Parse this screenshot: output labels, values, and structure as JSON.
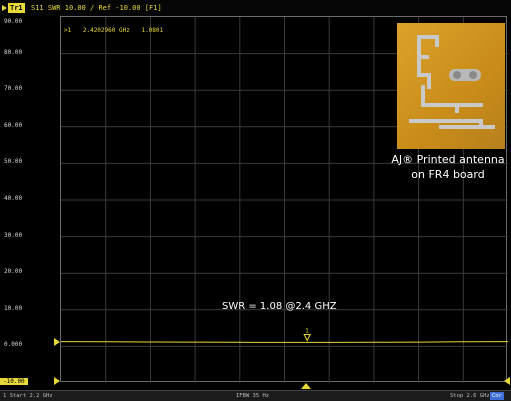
{
  "header": {
    "trace_id": "Tr1",
    "params": "S11",
    "format_scale": "SWR 10.00 / Ref -10.00",
    "channel": "[F1]"
  },
  "marker": {
    "id": ">1",
    "frequency": "2.4202960 GHz",
    "value": "1.0801"
  },
  "y_axis_labels": [
    "90.00",
    "80.00",
    "70.00",
    "60.00",
    "50.00",
    "40.00",
    "30.00",
    "20.00",
    "10.00",
    "0.000",
    "-10.00"
  ],
  "annotation": {
    "swr_text": "SWR = 1.08 @2.4 GHZ"
  },
  "photo": {
    "caption_line1": "AJ® Printed antenna",
    "caption_line2": "on FR4 board"
  },
  "status_bar": {
    "channel_no": "1",
    "start": "Start 2.2 GHz",
    "ifbw": "IFBW 35 Hz",
    "stop": "Stop 2.6 GHz",
    "badge": "Cor"
  },
  "colors": {
    "trace": "#e8d93a",
    "grid": "#3a3a3a",
    "background": "#000000"
  },
  "chart_data": {
    "type": "line",
    "ylim": [
      -10,
      90
    ],
    "xlim_ghz": [
      2.2,
      2.6
    ],
    "series": [
      {
        "x": [
          2.2,
          2.24,
          2.28,
          2.32,
          2.36,
          2.4,
          2.42,
          2.44,
          2.48,
          2.52,
          2.56,
          2.6
        ],
        "y": [
          1.3,
          1.25,
          1.2,
          1.18,
          1.12,
          1.09,
          1.08,
          1.09,
          1.12,
          1.18,
          1.25,
          1.3
        ]
      }
    ],
    "marker_x": 2.4203,
    "marker_y": 1.08,
    "grid": true
  }
}
